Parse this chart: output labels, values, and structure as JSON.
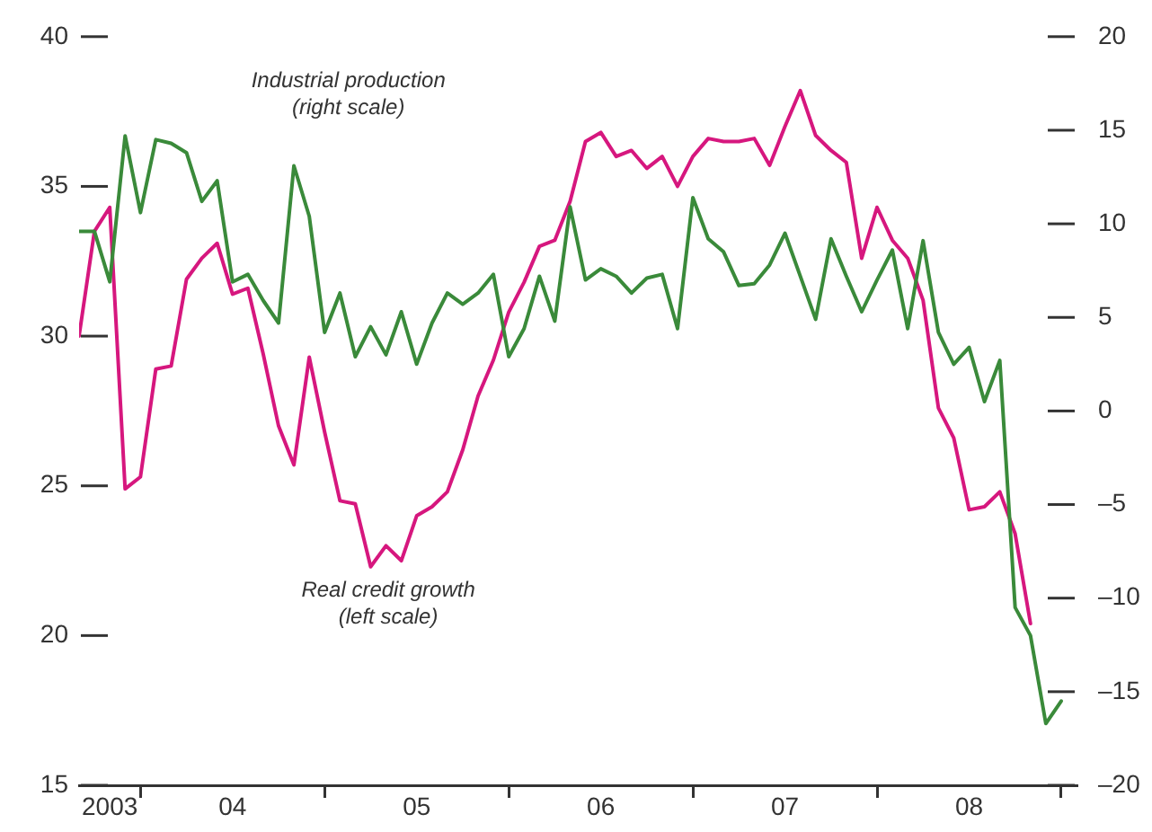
{
  "chart_data": {
    "type": "line",
    "x": [
      "2003-09",
      "2003-10",
      "2003-11",
      "2003-12",
      "2004-01",
      "2004-02",
      "2004-03",
      "2004-04",
      "2004-05",
      "2004-06",
      "2004-07",
      "2004-08",
      "2004-09",
      "2004-10",
      "2004-11",
      "2004-12",
      "2005-01",
      "2005-02",
      "2005-03",
      "2005-04",
      "2005-05",
      "2005-06",
      "2005-07",
      "2005-08",
      "2005-09",
      "2005-10",
      "2005-11",
      "2005-12",
      "2006-01",
      "2006-02",
      "2006-03",
      "2006-04",
      "2006-05",
      "2006-06",
      "2006-07",
      "2006-08",
      "2006-09",
      "2006-10",
      "2006-11",
      "2006-12",
      "2007-01",
      "2007-02",
      "2007-03",
      "2007-04",
      "2007-05",
      "2007-06",
      "2007-07",
      "2007-08",
      "2007-09",
      "2007-10",
      "2007-11",
      "2007-12",
      "2008-01",
      "2008-02",
      "2008-03",
      "2008-04",
      "2008-05",
      "2008-06",
      "2008-07",
      "2008-08",
      "2008-09",
      "2008-10",
      "2008-11",
      "2008-12",
      "2009-01"
    ],
    "series": [
      {
        "name": "Industrial production\n(right scale)",
        "color": "#3a8a3a",
        "axis": "y2",
        "values": [
          9.6,
          9.6,
          6.9,
          14.7,
          10.6,
          14.5,
          14.3,
          13.8,
          11.2,
          12.3,
          6.9,
          7.3,
          5.9,
          4.7,
          13.1,
          10.4,
          4.2,
          6.3,
          2.9,
          4.5,
          3,
          5.3,
          2.5,
          4.7,
          6.3,
          5.7,
          6.3,
          7.3,
          2.9,
          4.4,
          7.2,
          4.8,
          10.9,
          7,
          7.6,
          7.2,
          6.3,
          7.1,
          7.3,
          4.4,
          11.4,
          9.2,
          8.5,
          6.7,
          6.8,
          7.8,
          9.5,
          7.2,
          4.9,
          9.2,
          7.2,
          5.3,
          7,
          8.6,
          4.4,
          9.1,
          4.2,
          2.5,
          3.4,
          0.5,
          2.7,
          -10.5,
          -12,
          -16.7,
          -15.5
        ]
      },
      {
        "name": "Real credit growth\n(left scale)",
        "color": "#d6177e",
        "axis": "y",
        "values": [
          30,
          33.5,
          34.3,
          24.9,
          25.3,
          28.9,
          29,
          31.9,
          32.6,
          33.1,
          31.4,
          31.6,
          29.4,
          27,
          25.7,
          29.3,
          26.8,
          24.5,
          24.4,
          22.3,
          23,
          22.5,
          24,
          24.3,
          24.8,
          26.2,
          28,
          29.2,
          30.8,
          31.8,
          33,
          33.2,
          34.5,
          36.5,
          36.8,
          36,
          36.2,
          35.6,
          36,
          35,
          36,
          36.6,
          36.5,
          36.5,
          36.6,
          35.7,
          37,
          38.2,
          36.7,
          36.2,
          35.8,
          32.6,
          34.3,
          33.2,
          32.6,
          31.2,
          27.6,
          26.6,
          24.2,
          24.3,
          24.8,
          23.4,
          20.4,
          null,
          null
        ]
      }
    ],
    "xlim": [
      "2003-09",
      "2009-02"
    ],
    "xticks": [
      {
        "value": "2003-11",
        "label": "2003"
      },
      {
        "value": "2004-01",
        "label": null
      },
      {
        "value": "2004-07",
        "label": "04"
      },
      {
        "value": "2005-01",
        "label": null
      },
      {
        "value": "2005-07",
        "label": "05"
      },
      {
        "value": "2006-01",
        "label": null
      },
      {
        "value": "2006-07",
        "label": "06"
      },
      {
        "value": "2007-01",
        "label": null
      },
      {
        "value": "2007-07",
        "label": "07"
      },
      {
        "value": "2008-01",
        "label": null
      },
      {
        "value": "2008-07",
        "label": "08"
      },
      {
        "value": "2009-01",
        "label": null
      }
    ],
    "ylim": [
      15,
      40
    ],
    "yticks": [
      15,
      20,
      25,
      30,
      35,
      40
    ],
    "y2lim": [
      -20,
      20
    ],
    "y2ticks": [
      {
        "value": -20,
        "label": "–20"
      },
      {
        "value": -15,
        "label": "–15"
      },
      {
        "value": -10,
        "label": "–10"
      },
      {
        "value": -5,
        "label": "–5"
      },
      0,
      5,
      10,
      15,
      20
    ],
    "grid": false,
    "legend": false,
    "marker": "none",
    "line_style": "solid"
  }
}
